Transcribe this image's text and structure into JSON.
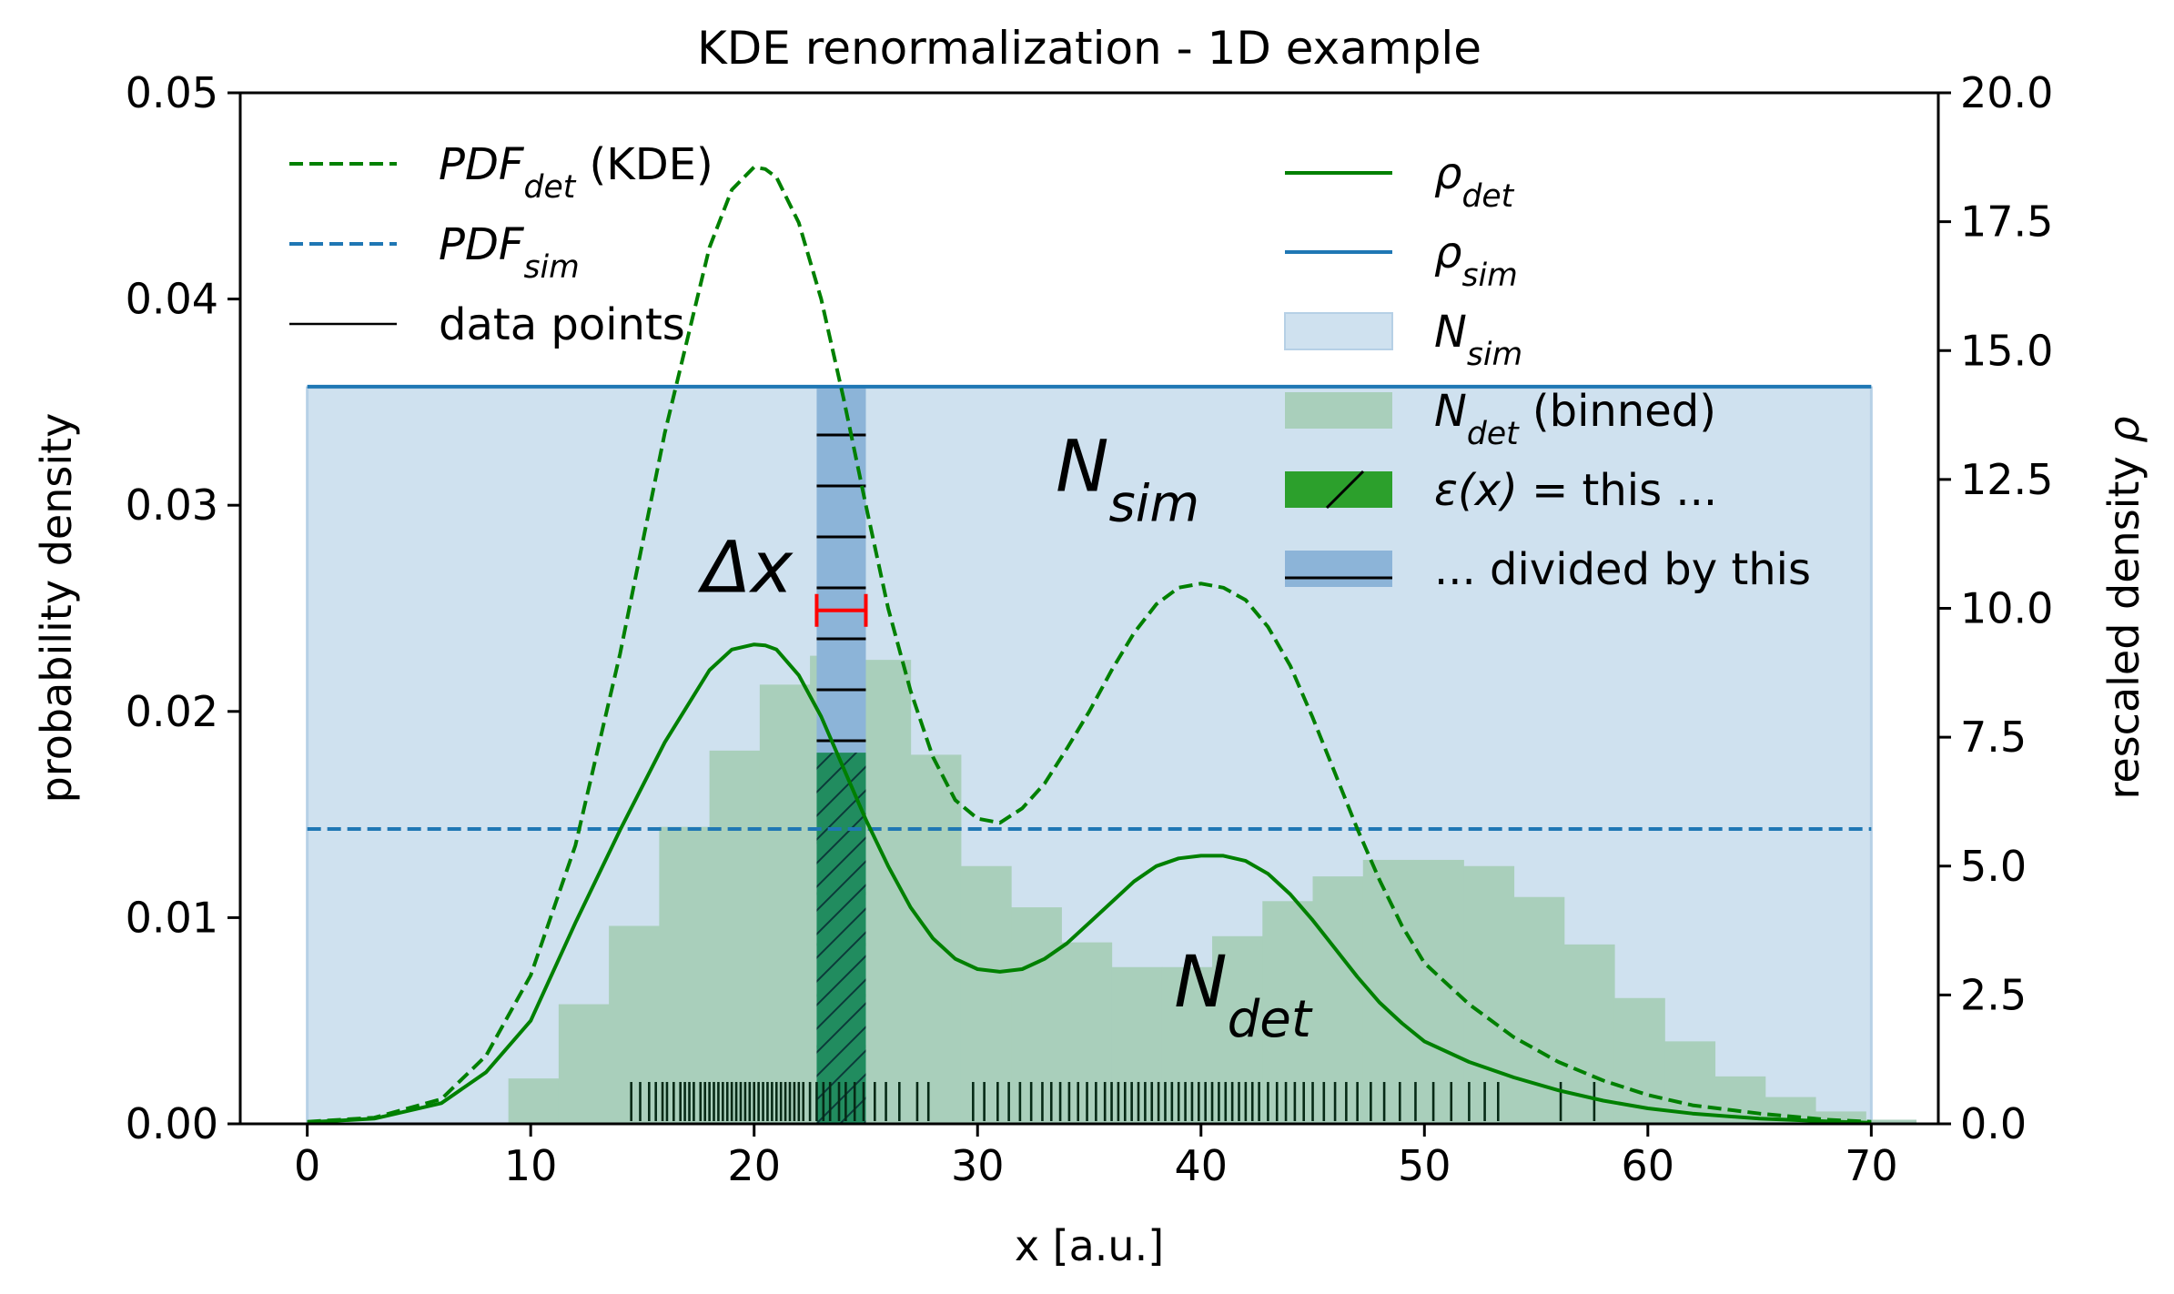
{
  "chart_data": {
    "type": "line",
    "title": "KDE renormalization - 1D example",
    "xlabel": "x [a.u.]",
    "ylabel": "probability density",
    "ylabel_right": "rescaled density",
    "ylabel_right_symbol": "ρ",
    "xlim": [
      -3,
      73
    ],
    "ylim": [
      0,
      0.05
    ],
    "ylim_right": [
      0,
      20
    ],
    "x_ticks": [
      "0",
      "10",
      "20",
      "30",
      "40",
      "50",
      "60",
      "70"
    ],
    "y_ticks": [
      "0.00",
      "0.01",
      "0.02",
      "0.03",
      "0.04",
      "0.05"
    ],
    "y_ticks_right": [
      "0.0",
      "2.5",
      "5.0",
      "7.5",
      "10.0",
      "12.5",
      "15.0",
      "17.5",
      "20.0"
    ],
    "grid": false,
    "legend_left": [
      {
        "main": "PDF",
        "sub": "det",
        "suffix": " (KDE)",
        "style": "dashed",
        "color": "#008000"
      },
      {
        "main": "PDF",
        "sub": "sim",
        "suffix": "",
        "style": "dashed",
        "color": "#1f77b4"
      },
      {
        "main": "",
        "sub": "",
        "suffix": "data points",
        "style": "solid",
        "color": "#000000"
      }
    ],
    "legend_right": [
      {
        "main": "ρ",
        "sub": "det",
        "suffix": "",
        "style": "solid",
        "color": "#008000"
      },
      {
        "main": "ρ",
        "sub": "sim",
        "suffix": "",
        "style": "solid",
        "color": "#1f77b4"
      },
      {
        "main": "N",
        "sub": "sim",
        "suffix": "",
        "style": "patch",
        "color": "#cfe1ef"
      },
      {
        "main": "N",
        "sub": "det",
        "suffix": " (binned)",
        "style": "patch",
        "color": "#a9cfbb"
      },
      {
        "main": "ε(x)",
        "sub": "",
        "suffix": " = this ...",
        "style": "patch-hatch",
        "color": "#2ca02c"
      },
      {
        "main": "",
        "sub": "",
        "suffix": "... divided by this",
        "style": "patch-hline",
        "color": "#8cb4d8"
      }
    ],
    "annotations": {
      "nsim": {
        "main": "N",
        "sub": "sim",
        "x": 33.5,
        "y": 0.0307
      },
      "ndet": {
        "main": "N",
        "sub": "det",
        "x": 38.8,
        "y": 0.0057
      },
      "dx": {
        "text": "Δx",
        "x": 19.7,
        "y": 0.0258
      }
    },
    "dx_interval": [
      22.8,
      25.0
    ],
    "highlight_bin": {
      "x0": 22.8,
      "x1": 25.0,
      "det": 0.018,
      "sim": 0.0357
    },
    "pdf_sim_level": 0.0143,
    "rho_sim_level": 14.3,
    "nsim_band": {
      "x0": 0,
      "x1": 70,
      "height": 0.0357
    },
    "pdf_det_curve": {
      "x": [
        0,
        3,
        6,
        8,
        10,
        12,
        14,
        16,
        18,
        19,
        20,
        20.5,
        21,
        22,
        23,
        24,
        25,
        26,
        27,
        28,
        29,
        30,
        31,
        32,
        33,
        34,
        35,
        36,
        37,
        38,
        39,
        40,
        41,
        42,
        43,
        44,
        45,
        46,
        47,
        48,
        49,
        50,
        52,
        54,
        56,
        58,
        60,
        62,
        65,
        68,
        70
      ],
      "y": [
        0.0001,
        0.0003,
        0.0012,
        0.0033,
        0.0072,
        0.0135,
        0.0228,
        0.0335,
        0.0425,
        0.0453,
        0.0464,
        0.0463,
        0.0459,
        0.0437,
        0.04,
        0.0352,
        0.03,
        0.025,
        0.021,
        0.0178,
        0.0157,
        0.0148,
        0.0146,
        0.0153,
        0.0165,
        0.0182,
        0.02,
        0.022,
        0.0238,
        0.0252,
        0.026,
        0.0262,
        0.026,
        0.0254,
        0.0241,
        0.0222,
        0.0197,
        0.017,
        0.0143,
        0.0118,
        0.0096,
        0.0078,
        0.0058,
        0.0042,
        0.003,
        0.0021,
        0.0014,
        0.0009,
        0.0005,
        0.0002,
        0.0001
      ]
    },
    "rho_det_curve": {
      "x": [
        0,
        3,
        6,
        8,
        10,
        12,
        14,
        16,
        18,
        19,
        20,
        20.5,
        21,
        22,
        23,
        24,
        25,
        26,
        27,
        28,
        29,
        30,
        31,
        32,
        33,
        34,
        35,
        36,
        37,
        38,
        39,
        40,
        41,
        42,
        43,
        44,
        45,
        46,
        47,
        48,
        49,
        50,
        52,
        54,
        56,
        58,
        60,
        62,
        65,
        68,
        70
      ],
      "y": [
        0.03,
        0.1,
        0.4,
        1.0,
        2.0,
        3.9,
        5.7,
        7.4,
        8.8,
        9.2,
        9.3,
        9.28,
        9.2,
        8.7,
        7.9,
        6.9,
        5.9,
        5.0,
        4.2,
        3.6,
        3.2,
        3.0,
        2.95,
        3.0,
        3.2,
        3.5,
        3.9,
        4.3,
        4.7,
        5.0,
        5.15,
        5.2,
        5.2,
        5.1,
        4.85,
        4.45,
        3.95,
        3.4,
        2.85,
        2.35,
        1.95,
        1.6,
        1.2,
        0.9,
        0.65,
        0.45,
        0.3,
        0.2,
        0.1,
        0.05,
        0.02
      ]
    },
    "ndet_histogram": {
      "bin_width": 2.25,
      "x_start": 9.0,
      "heights": [
        0.0022,
        0.0058,
        0.0096,
        0.0144,
        0.0181,
        0.0213,
        0.0227,
        0.0225,
        0.0179,
        0.0125,
        0.0105,
        0.0088,
        0.0076,
        0.0076,
        0.0091,
        0.0108,
        0.012,
        0.0128,
        0.0128,
        0.0125,
        0.011,
        0.0087,
        0.0061,
        0.004,
        0.0023,
        0.0013,
        0.0006,
        0.0002
      ]
    },
    "data_points": [
      14.5,
      14.9,
      15.3,
      15.6,
      15.9,
      16.1,
      16.4,
      16.7,
      16.9,
      17.1,
      17.3,
      17.6,
      17.8,
      18.0,
      18.2,
      18.4,
      18.6,
      18.8,
      19.0,
      19.2,
      19.4,
      19.6,
      19.8,
      20.0,
      20.2,
      20.4,
      20.6,
      20.8,
      21.0,
      21.2,
      21.4,
      21.6,
      21.8,
      22.0,
      22.2,
      22.5,
      22.8,
      23.1,
      23.4,
      23.8,
      24.1,
      24.5,
      24.9,
      25.4,
      25.9,
      26.5,
      27.3,
      27.8,
      29.8,
      30.3,
      30.9,
      31.4,
      31.9,
      32.4,
      32.9,
      33.3,
      33.7,
      34.1,
      34.5,
      34.9,
      35.3,
      35.7,
      36.0,
      36.3,
      36.6,
      36.9,
      37.2,
      37.5,
      37.8,
      38.1,
      38.4,
      38.7,
      39.0,
      39.3,
      39.6,
      39.9,
      40.2,
      40.5,
      40.8,
      41.1,
      41.4,
      41.7,
      42.0,
      42.3,
      42.6,
      43.0,
      43.4,
      43.8,
      44.2,
      44.6,
      45.0,
      45.5,
      46.0,
      46.5,
      47.0,
      47.6,
      48.2,
      48.9,
      49.6,
      50.4,
      51.2,
      52.0,
      52.7,
      53.3,
      56.1,
      57.6
    ]
  }
}
